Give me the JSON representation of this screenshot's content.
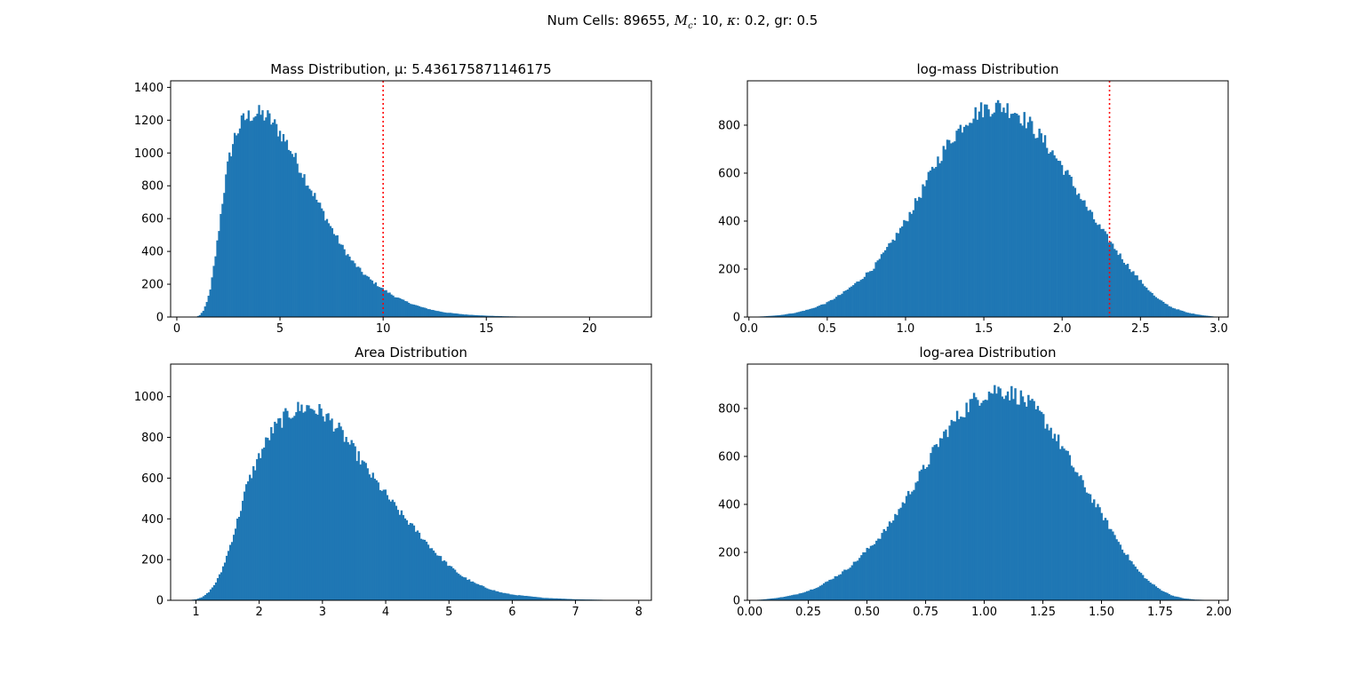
{
  "figure": {
    "suptitle": {
      "p1": "Num Cells: ",
      "num_cells": "89655",
      "p2": ", ",
      "mc_symbol": "M",
      "mc_sub": "c",
      "p3": ": ",
      "mc_value": "10",
      "p4": ", ",
      "kappa_symbol": "κ",
      "p5": ": ",
      "kappa_value": "0.2",
      "p6": ", gr: ",
      "gr_value": "0.5"
    },
    "bar_color": "#1f77b4",
    "marker_color": "#ff0000"
  },
  "chart_data": [
    {
      "type": "bar",
      "title": "Mass Distribution, μ: 5.436175871146175",
      "xlim": [
        -0.3,
        23.0
      ],
      "ylim": [
        0,
        1440
      ],
      "xticks": [
        0,
        5,
        10,
        15,
        20
      ],
      "xtick_labels": [
        "0",
        "5",
        "10",
        "15",
        "20"
      ],
      "yticks": [
        0,
        200,
        400,
        600,
        800,
        1000,
        1200,
        1400
      ],
      "ytick_labels": [
        "0",
        "200",
        "400",
        "600",
        "800",
        "1000",
        "1200",
        "1400"
      ],
      "vline": 10,
      "bins": {
        "start": 0.9,
        "end": 22.0,
        "count": 250
      },
      "profile": [
        [
          0.9,
          0
        ],
        [
          1.1,
          10
        ],
        [
          1.3,
          40
        ],
        [
          1.6,
          150
        ],
        [
          1.9,
          400
        ],
        [
          2.2,
          700
        ],
        [
          2.5,
          950
        ],
        [
          2.8,
          1100
        ],
        [
          3.2,
          1200
        ],
        [
          3.6,
          1235
        ],
        [
          4.0,
          1240
        ],
        [
          4.4,
          1220
        ],
        [
          4.8,
          1160
        ],
        [
          5.2,
          1090
        ],
        [
          5.6,
          1000
        ],
        [
          6.0,
          900
        ],
        [
          6.5,
          780
        ],
        [
          7.0,
          660
        ],
        [
          7.5,
          540
        ],
        [
          8.0,
          430
        ],
        [
          8.5,
          340
        ],
        [
          9.0,
          270
        ],
        [
          9.5,
          215
        ],
        [
          10.0,
          170
        ],
        [
          10.5,
          130
        ],
        [
          11.0,
          100
        ],
        [
          11.5,
          75
        ],
        [
          12.0,
          55
        ],
        [
          12.5,
          40
        ],
        [
          13.0,
          28
        ],
        [
          14.0,
          15
        ],
        [
          15.0,
          8
        ],
        [
          16.0,
          4
        ],
        [
          17.0,
          2
        ],
        [
          18.0,
          1
        ],
        [
          19.0,
          0.5
        ],
        [
          22.0,
          0
        ]
      ]
    },
    {
      "type": "bar",
      "title": "log-mass Distribution",
      "xlim": [
        -0.01,
        3.06
      ],
      "ylim": [
        0,
        985
      ],
      "xticks": [
        0,
        0.5,
        1.0,
        1.5,
        2.0,
        2.5,
        3.0
      ],
      "xtick_labels": [
        "0.0",
        "0.5",
        "1.0",
        "1.5",
        "2.0",
        "2.5",
        "3.0"
      ],
      "yticks": [
        0,
        200,
        400,
        600,
        800
      ],
      "ytick_labels": [
        "0",
        "200",
        "400",
        "600",
        "800"
      ],
      "vline": 2.3026,
      "bins": {
        "start": 0.0,
        "end": 3.0,
        "count": 250
      },
      "profile": [
        [
          0.0,
          0
        ],
        [
          0.1,
          3
        ],
        [
          0.2,
          8
        ],
        [
          0.3,
          18
        ],
        [
          0.4,
          35
        ],
        [
          0.5,
          60
        ],
        [
          0.6,
          100
        ],
        [
          0.7,
          150
        ],
        [
          0.8,
          210
        ],
        [
          0.9,
          300
        ],
        [
          1.0,
          400
        ],
        [
          1.1,
          520
        ],
        [
          1.2,
          650
        ],
        [
          1.3,
          750
        ],
        [
          1.4,
          830
        ],
        [
          1.5,
          870
        ],
        [
          1.6,
          880
        ],
        [
          1.7,
          860
        ],
        [
          1.8,
          800
        ],
        [
          1.9,
          720
        ],
        [
          2.0,
          630
        ],
        [
          2.1,
          520
        ],
        [
          2.2,
          410
        ],
        [
          2.3,
          320
        ],
        [
          2.4,
          230
        ],
        [
          2.5,
          150
        ],
        [
          2.6,
          80
        ],
        [
          2.7,
          40
        ],
        [
          2.8,
          18
        ],
        [
          2.9,
          7
        ],
        [
          3.0,
          0
        ]
      ]
    },
    {
      "type": "bar",
      "title": "Area Distribution",
      "xlim": [
        0.6,
        8.2
      ],
      "ylim": [
        0,
        1160
      ],
      "xticks": [
        1,
        2,
        3,
        4,
        5,
        6,
        7,
        8
      ],
      "xtick_labels": [
        "1",
        "2",
        "3",
        "4",
        "5",
        "6",
        "7",
        "8"
      ],
      "yticks": [
        0,
        200,
        400,
        600,
        800,
        1000
      ],
      "ytick_labels": [
        "0",
        "200",
        "400",
        "600",
        "800",
        "1000"
      ],
      "bins": {
        "start": 0.85,
        "end": 7.9,
        "count": 250
      },
      "profile": [
        [
          0.85,
          0
        ],
        [
          1.0,
          5
        ],
        [
          1.1,
          15
        ],
        [
          1.2,
          40
        ],
        [
          1.3,
          80
        ],
        [
          1.4,
          140
        ],
        [
          1.5,
          230
        ],
        [
          1.6,
          330
        ],
        [
          1.7,
          440
        ],
        [
          1.8,
          560
        ],
        [
          2.0,
          710
        ],
        [
          2.2,
          830
        ],
        [
          2.4,
          900
        ],
        [
          2.6,
          940
        ],
        [
          2.8,
          950
        ],
        [
          3.0,
          920
        ],
        [
          3.2,
          860
        ],
        [
          3.4,
          780
        ],
        [
          3.6,
          690
        ],
        [
          3.8,
          600
        ],
        [
          4.0,
          520
        ],
        [
          4.2,
          440
        ],
        [
          4.4,
          370
        ],
        [
          4.6,
          300
        ],
        [
          4.8,
          230
        ],
        [
          5.0,
          170
        ],
        [
          5.2,
          120
        ],
        [
          5.4,
          85
        ],
        [
          5.6,
          60
        ],
        [
          5.8,
          40
        ],
        [
          6.0,
          28
        ],
        [
          6.5,
          12
        ],
        [
          7.0,
          5
        ],
        [
          7.5,
          2
        ],
        [
          7.9,
          0
        ]
      ]
    },
    {
      "type": "bar",
      "title": "log-area Distribution",
      "xlim": [
        -0.01,
        2.04
      ],
      "ylim": [
        0,
        985
      ],
      "xticks": [
        0,
        0.25,
        0.5,
        0.75,
        1.0,
        1.25,
        1.5,
        1.75,
        2.0
      ],
      "xtick_labels": [
        "0.00",
        "0.25",
        "0.50",
        "0.75",
        "1.00",
        "1.25",
        "1.50",
        "1.75",
        "2.00"
      ],
      "yticks": [
        0,
        200,
        400,
        600,
        800
      ],
      "ytick_labels": [
        "0",
        "200",
        "400",
        "600",
        "800"
      ],
      "bins": {
        "start": 0.0,
        "end": 2.0,
        "count": 250
      },
      "profile": [
        [
          0.0,
          0
        ],
        [
          0.05,
          3
        ],
        [
          0.1,
          8
        ],
        [
          0.15,
          15
        ],
        [
          0.2,
          25
        ],
        [
          0.25,
          40
        ],
        [
          0.3,
          60
        ],
        [
          0.35,
          90
        ],
        [
          0.4,
          120
        ],
        [
          0.45,
          160
        ],
        [
          0.5,
          210
        ],
        [
          0.55,
          260
        ],
        [
          0.6,
          320
        ],
        [
          0.65,
          400
        ],
        [
          0.7,
          480
        ],
        [
          0.75,
          560
        ],
        [
          0.8,
          650
        ],
        [
          0.85,
          720
        ],
        [
          0.9,
          780
        ],
        [
          0.95,
          830
        ],
        [
          1.0,
          860
        ],
        [
          1.05,
          880
        ],
        [
          1.1,
          870
        ],
        [
          1.15,
          850
        ],
        [
          1.2,
          810
        ],
        [
          1.25,
          760
        ],
        [
          1.3,
          690
        ],
        [
          1.35,
          610
        ],
        [
          1.4,
          520
        ],
        [
          1.45,
          440
        ],
        [
          1.5,
          360
        ],
        [
          1.55,
          280
        ],
        [
          1.6,
          200
        ],
        [
          1.65,
          130
        ],
        [
          1.7,
          80
        ],
        [
          1.75,
          45
        ],
        [
          1.8,
          20
        ],
        [
          1.85,
          8
        ],
        [
          1.9,
          3
        ],
        [
          2.0,
          0
        ]
      ]
    }
  ]
}
